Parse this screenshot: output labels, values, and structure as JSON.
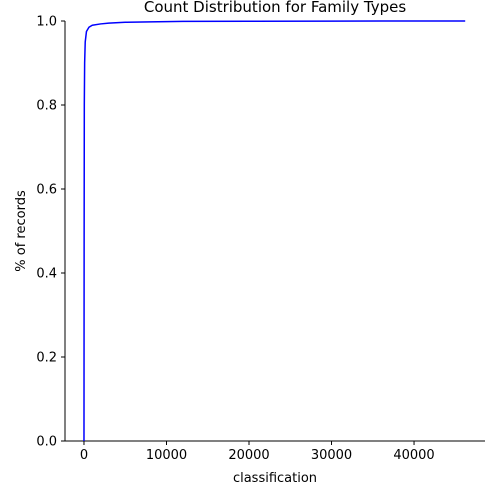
{
  "chart_data": {
    "type": "line",
    "title": "Count Distribution for Family Types",
    "xlabel": "classification",
    "ylabel": "% of records",
    "xlim": [
      -2300,
      48600
    ],
    "ylim": [
      0,
      1
    ],
    "x_ticks": [
      0,
      10000,
      20000,
      30000,
      40000
    ],
    "x_tick_labels": [
      "0",
      "10000",
      "20000",
      "30000",
      "40000"
    ],
    "y_ticks": [
      0.0,
      0.2,
      0.4,
      0.6,
      0.8,
      1.0
    ],
    "y_tick_labels": [
      "0.0",
      "0.2",
      "0.4",
      "0.6",
      "0.8",
      "1.0"
    ],
    "grid": false,
    "series": [
      {
        "color": "#0000ff",
        "points": [
          [
            0,
            0.0
          ],
          [
            20,
            0.5
          ],
          [
            40,
            0.8
          ],
          [
            80,
            0.9
          ],
          [
            150,
            0.95
          ],
          [
            300,
            0.975
          ],
          [
            600,
            0.985
          ],
          [
            1000,
            0.99
          ],
          [
            2000,
            0.993
          ],
          [
            3000,
            0.995
          ],
          [
            5000,
            0.997
          ],
          [
            8000,
            0.998
          ],
          [
            12000,
            0.999
          ],
          [
            20000,
            0.9995
          ],
          [
            30000,
            0.9998
          ],
          [
            46200,
            1.0
          ]
        ]
      }
    ]
  }
}
